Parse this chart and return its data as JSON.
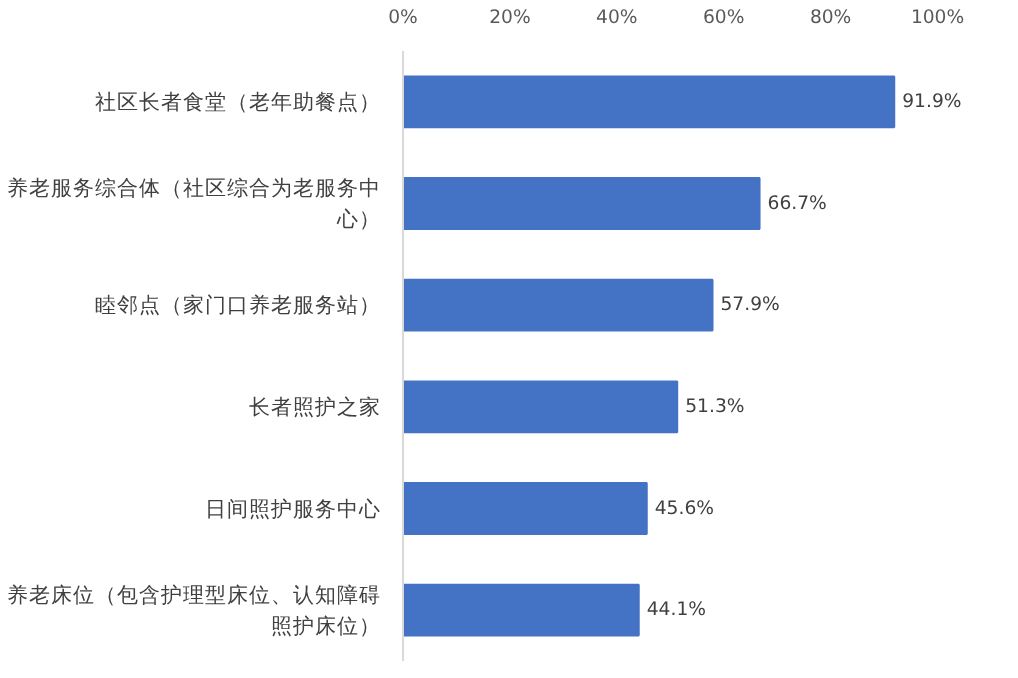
{
  "chart_data": {
    "type": "bar",
    "orientation": "horizontal",
    "categories": [
      "社区长者食堂（老年助餐点）",
      "养老服务综合体（社区综合为老服务中心）",
      "睦邻点（家门口养老服务站）",
      "长者照护之家",
      "日间照护服务中心",
      "养老床位（包含护理型床位、认知障碍照护床位）"
    ],
    "values": [
      91.9,
      66.7,
      57.9,
      51.3,
      45.6,
      44.1
    ],
    "value_labels": [
      "91.9%",
      "66.7%",
      "57.9%",
      "51.3%",
      "45.6%",
      "44.1%"
    ],
    "color": "#4472c4",
    "xlim": [
      0,
      100
    ],
    "xticks": [
      {
        "value": 0,
        "label": "0%"
      },
      {
        "value": 20,
        "label": "20%"
      },
      {
        "value": 40,
        "label": "40%"
      },
      {
        "value": 60,
        "label": "60%"
      },
      {
        "value": 80,
        "label": "80%"
      },
      {
        "value": 100,
        "label": "100%"
      }
    ],
    "grid": false
  }
}
